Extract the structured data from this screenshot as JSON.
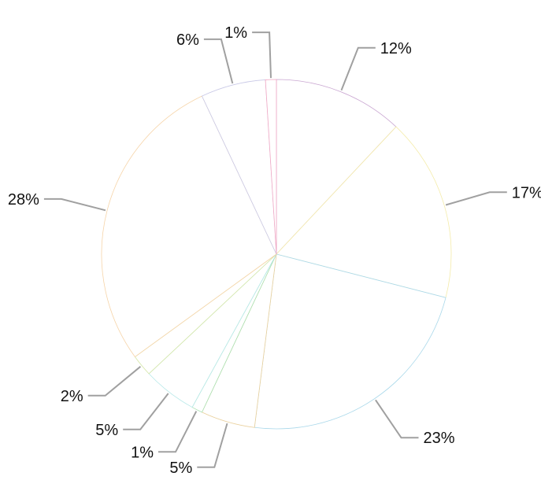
{
  "chart_data": {
    "type": "pie",
    "title": "",
    "start_angle_deg": 0,
    "direction": "clockwise",
    "legend": "none",
    "slices": [
      {
        "value": 12,
        "label": "12%",
        "color": "#c9a6d1"
      },
      {
        "value": 17,
        "label": "17%",
        "color": "#f4eba8"
      },
      {
        "value": 23,
        "label": "23%",
        "color": "#a9d8ea"
      },
      {
        "value": 5,
        "label": "5%",
        "color": "#e9cf9a"
      },
      {
        "value": 1,
        "label": "1%",
        "color": "#a8e0b0"
      },
      {
        "value": 5,
        "label": "5%",
        "color": "#b6e8e8"
      },
      {
        "value": 2,
        "label": "2%",
        "color": "#d4e6a6"
      },
      {
        "value": 28,
        "label": "28%",
        "color": "#f6d4a8"
      },
      {
        "value": 6,
        "label": "6%",
        "color": "#c8c8e6"
      },
      {
        "value": 1,
        "label": "1%",
        "color": "#f2a8c4"
      }
    ]
  }
}
